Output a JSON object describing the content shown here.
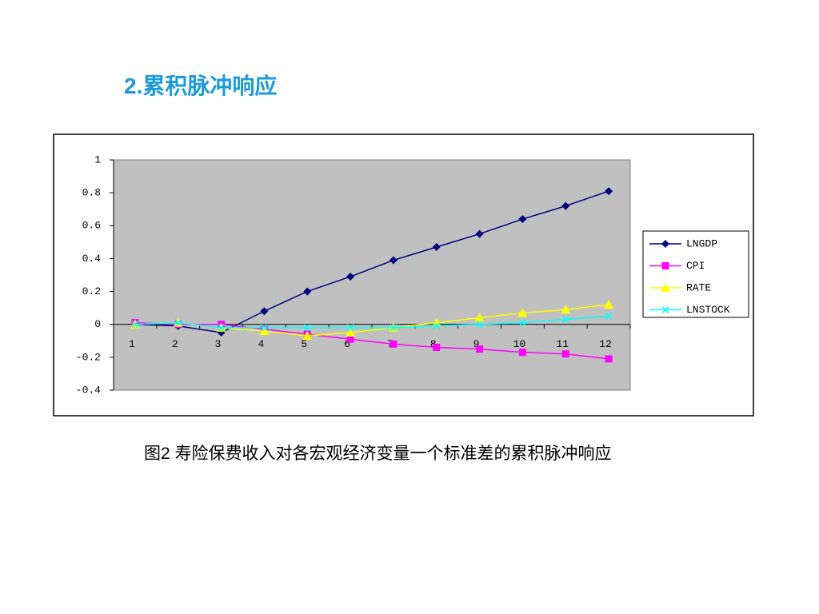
{
  "title": "2.累积脉冲响应",
  "caption": "图2 寿险保费收入对各宏观经济变量一个标准差的累积脉冲响应",
  "chart_data": {
    "type": "line",
    "categories": [
      "1",
      "2",
      "3",
      "4",
      "5",
      "6",
      "7",
      "8",
      "9",
      "10",
      "11",
      "12"
    ],
    "series": [
      {
        "name": "LNGDP",
        "color": "#000080",
        "marker": "diamond",
        "values": [
          0,
          -0.01,
          -0.05,
          0.08,
          0.2,
          0.29,
          0.39,
          0.47,
          0.55,
          0.64,
          0.72,
          0.81
        ]
      },
      {
        "name": "CPI",
        "color": "#ff00ff",
        "marker": "square",
        "values": [
          0.01,
          0,
          0,
          -0.03,
          -0.06,
          -0.09,
          -0.12,
          -0.14,
          -0.15,
          -0.17,
          -0.18,
          -0.21
        ]
      },
      {
        "name": "RATE",
        "color": "#ffff00",
        "marker": "triangle",
        "values": [
          0,
          0.01,
          -0.02,
          -0.04,
          -0.07,
          -0.05,
          -0.02,
          0.01,
          0.04,
          0.07,
          0.09,
          0.12
        ]
      },
      {
        "name": "LNSTOCK",
        "color": "#00ffff",
        "marker": "x",
        "values": [
          0,
          0.01,
          -0.02,
          -0.02,
          -0.02,
          -0.02,
          -0.02,
          -0.01,
          0,
          0.01,
          0.03,
          0.05
        ]
      }
    ],
    "ylim": [
      -0.4,
      1
    ],
    "yticks": [
      1,
      0.8,
      0.6,
      0.4,
      0.2,
      0,
      -0.2,
      -0.4
    ],
    "plot_background": "#c0c0c0",
    "legend": "right"
  }
}
